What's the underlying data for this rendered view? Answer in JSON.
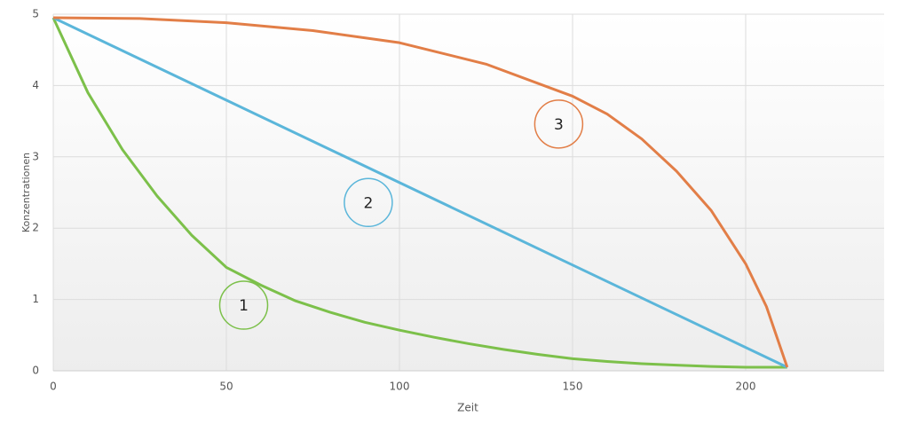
{
  "chart_data": {
    "type": "line",
    "xlabel": "Zeit",
    "ylabel": "Konzentrationen",
    "xlim": [
      0,
      240
    ],
    "ylim": [
      0,
      5
    ],
    "xticks": [
      0,
      50,
      100,
      150,
      200
    ],
    "yticks": [
      0,
      1,
      2,
      3,
      4,
      5
    ],
    "grid": true,
    "series": [
      {
        "color": "#7cc04a",
        "x": [
          0,
          10,
          20,
          30,
          40,
          50,
          60,
          70,
          80,
          90,
          100,
          110,
          120,
          130,
          140,
          150,
          160,
          170,
          180,
          190,
          200,
          212
        ],
        "values": [
          4.95,
          3.9,
          3.1,
          2.45,
          1.9,
          1.45,
          1.2,
          0.98,
          0.82,
          0.68,
          0.57,
          0.47,
          0.38,
          0.3,
          0.23,
          0.17,
          0.13,
          0.1,
          0.08,
          0.06,
          0.05,
          0.05
        ]
      },
      {
        "color": "#5bb6da",
        "x": [
          0,
          212
        ],
        "values": [
          4.95,
          0.05
        ]
      },
      {
        "color": "#e27e47",
        "x": [
          0,
          25,
          50,
          75,
          100,
          125,
          150,
          160,
          170,
          180,
          190,
          200,
          206,
          212
        ],
        "values": [
          4.95,
          4.94,
          4.88,
          4.77,
          4.6,
          4.3,
          3.85,
          3.6,
          3.25,
          2.8,
          2.25,
          1.5,
          0.9,
          0.05
        ]
      }
    ],
    "annotations": [
      {
        "text": "1",
        "x": 55,
        "y": 0.92,
        "color": "#7cc04a"
      },
      {
        "text": "2",
        "x": 91,
        "y": 2.36,
        "color": "#5bb6da"
      },
      {
        "text": "3",
        "x": 146,
        "y": 3.46,
        "color": "#e27e47"
      }
    ]
  }
}
